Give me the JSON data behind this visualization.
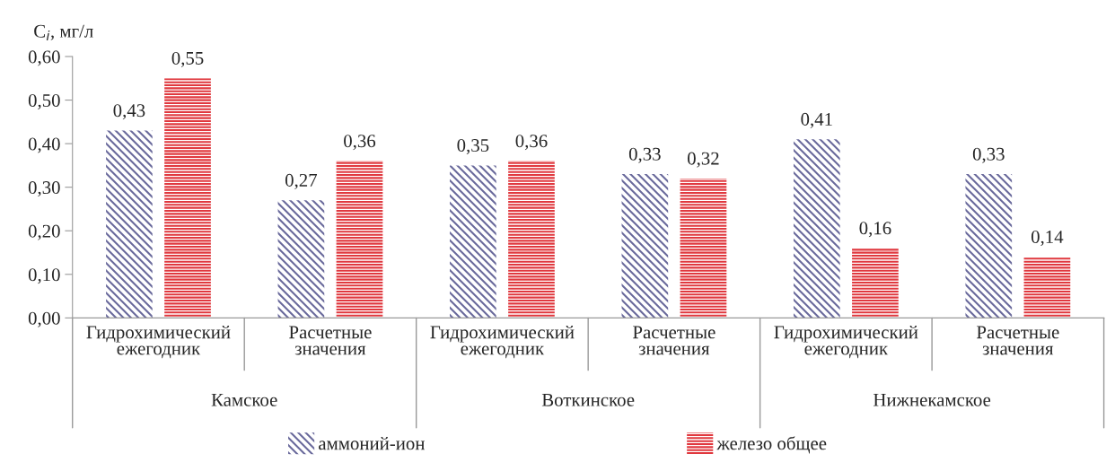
{
  "chart_data": {
    "type": "bar",
    "ylabel": "C$_{i}$, мг/л",
    "categories": [
      "Гидрохимический\nежегодник",
      "Расчетные\nзначения",
      "Гидрохимический\nежегодник",
      "Расчетные\nзначения",
      "Гидрохимический\nежегодник",
      "Расчетные\nзначения"
    ],
    "annotations": [
      "Камское",
      "Воткинское",
      "Нижнекамское"
    ],
    "series": [
      {
        "name": "аммоний-ион",
        "color": "#6a6a9c",
        "values": [
          0.43,
          0.27,
          0.35,
          0.33,
          0.41,
          0.33
        ],
        "value_labels": [
          "0,43",
          "0,27",
          "0,35",
          "0,33",
          "0,41",
          "0,33"
        ]
      },
      {
        "name": "железо общее",
        "color": "#e0383e",
        "values": [
          0.55,
          0.36,
          0.36,
          0.32,
          0.16,
          0.14
        ],
        "value_labels": [
          "0,55",
          "0,36",
          "0,36",
          "0,32",
          "0,16",
          "0,14"
        ]
      }
    ],
    "ylim": [
      0,
      0.6
    ],
    "yticks": [
      {
        "value": 0,
        "label": "0,00"
      },
      {
        "value": 0.1,
        "label": "0,10"
      },
      {
        "value": 0.2,
        "label": "0,20"
      },
      {
        "value": 0.3,
        "label": "0,30"
      },
      {
        "value": 0.4,
        "label": "0,40"
      },
      {
        "value": 0.5,
        "label": "0,50"
      },
      {
        "value": 0.6,
        "label": "0,60"
      }
    ],
    "grid": false,
    "legend": "bottom"
  }
}
